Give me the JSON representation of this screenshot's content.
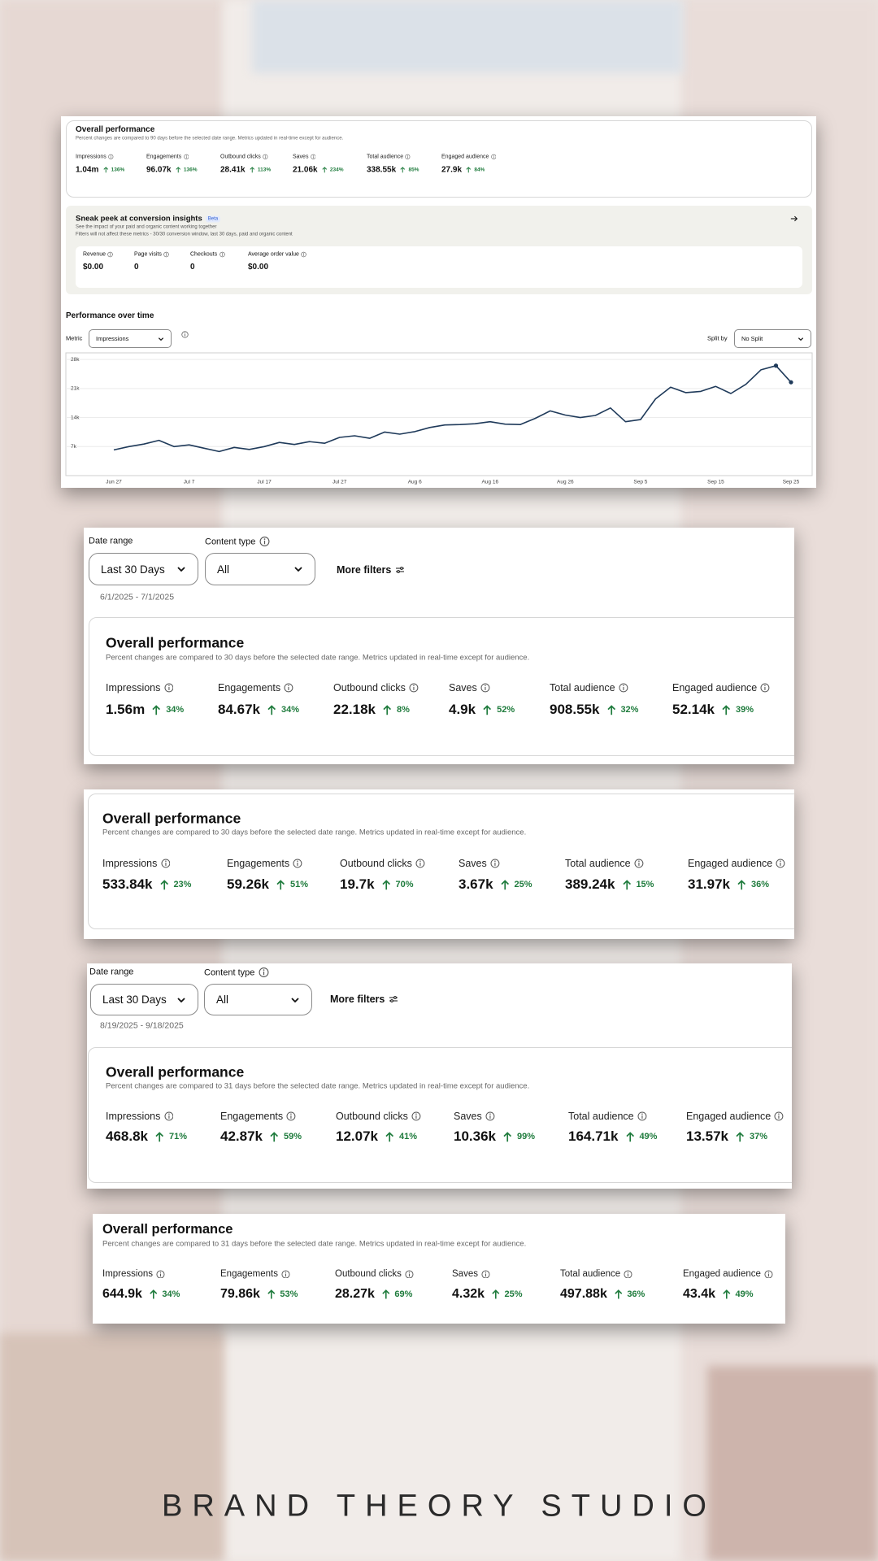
{
  "panels": [
    {
      "overall": {
        "title": "Overall performance",
        "subtitle": "Percent changes are compared to 90 days before the selected date range. Metrics updated in real-time except for audience.",
        "metrics": [
          {
            "label": "Impressions",
            "value": "1.04m",
            "change": "136%"
          },
          {
            "label": "Engagements",
            "value": "96.07k",
            "change": "136%"
          },
          {
            "label": "Outbound clicks",
            "value": "28.41k",
            "change": "113%"
          },
          {
            "label": "Saves",
            "value": "21.06k",
            "change": "234%"
          },
          {
            "label": "Total audience",
            "value": "338.55k",
            "change": "85%"
          },
          {
            "label": "Engaged audience",
            "value": "27.9k",
            "change": "84%"
          }
        ]
      },
      "conversion": {
        "title": "Sneak peek at conversion insights",
        "badge": "Beta",
        "description": "See the impact of your paid and organic content working together",
        "note": "Filters will not affect these metrics - 30/30 conversion window, last 30 days, paid and organic content",
        "metrics": [
          {
            "label": "Revenue",
            "value": "$0.00"
          },
          {
            "label": "Page visits",
            "value": "0"
          },
          {
            "label": "Checkouts",
            "value": "0"
          },
          {
            "label": "Average order value",
            "value": "$0.00"
          }
        ]
      },
      "performance": {
        "title": "Performance over time",
        "metric_label": "Metric",
        "metric_value": "Impressions",
        "split_label": "Split by",
        "split_value": "No Split"
      }
    },
    {
      "filters": {
        "date_range_label": "Date range",
        "date_range": "Last 30 Days",
        "content_type_label": "Content type",
        "content_type": "All",
        "more_filters": "More filters",
        "dates": "6/1/2025 - 7/1/2025"
      },
      "overall": {
        "title": "Overall performance",
        "subtitle": "Percent changes are compared to 30 days before the selected date range. Metrics updated in real-time except for audience.",
        "metrics": [
          {
            "label": "Impressions",
            "value": "1.56m",
            "change": "34%"
          },
          {
            "label": "Engagements",
            "value": "84.67k",
            "change": "34%"
          },
          {
            "label": "Outbound clicks",
            "value": "22.18k",
            "change": "8%"
          },
          {
            "label": "Saves",
            "value": "4.9k",
            "change": "52%"
          },
          {
            "label": "Total audience",
            "value": "908.55k",
            "change": "32%"
          },
          {
            "label": "Engaged audience",
            "value": "52.14k",
            "change": "39%"
          }
        ]
      }
    },
    {
      "overall": {
        "title": "Overall performance",
        "subtitle": "Percent changes are compared to 30 days before the selected date range. Metrics updated in real-time except for audience.",
        "metrics": [
          {
            "label": "Impressions",
            "value": "533.84k",
            "change": "23%"
          },
          {
            "label": "Engagements",
            "value": "59.26k",
            "change": "51%"
          },
          {
            "label": "Outbound clicks",
            "value": "19.7k",
            "change": "70%"
          },
          {
            "label": "Saves",
            "value": "3.67k",
            "change": "25%"
          },
          {
            "label": "Total audience",
            "value": "389.24k",
            "change": "15%"
          },
          {
            "label": "Engaged audience",
            "value": "31.97k",
            "change": "36%"
          }
        ]
      }
    },
    {
      "filters": {
        "date_range_label": "Date range",
        "date_range": "Last 30 Days",
        "content_type_label": "Content type",
        "content_type": "All",
        "more_filters": "More filters",
        "dates": "8/19/2025 - 9/18/2025"
      },
      "overall": {
        "title": "Overall performance",
        "subtitle": "Percent changes are compared to 31 days before the selected date range. Metrics updated in real-time except for audience.",
        "metrics": [
          {
            "label": "Impressions",
            "value": "468.8k",
            "change": "71%"
          },
          {
            "label": "Engagements",
            "value": "42.87k",
            "change": "59%"
          },
          {
            "label": "Outbound clicks",
            "value": "12.07k",
            "change": "41%"
          },
          {
            "label": "Saves",
            "value": "10.36k",
            "change": "99%"
          },
          {
            "label": "Total audience",
            "value": "164.71k",
            "change": "49%"
          },
          {
            "label": "Engaged audience",
            "value": "13.57k",
            "change": "37%"
          }
        ]
      }
    },
    {
      "overall": {
        "title": "Overall performance",
        "subtitle": "Percent changes are compared to 31 days before the selected date range. Metrics updated in real-time except for audience.",
        "metrics": [
          {
            "label": "Impressions",
            "value": "644.9k",
            "change": "34%"
          },
          {
            "label": "Engagements",
            "value": "79.86k",
            "change": "53%"
          },
          {
            "label": "Outbound clicks",
            "value": "28.27k",
            "change": "69%"
          },
          {
            "label": "Saves",
            "value": "4.32k",
            "change": "25%"
          },
          {
            "label": "Total audience",
            "value": "497.88k",
            "change": "36%"
          },
          {
            "label": "Engaged audience",
            "value": "43.4k",
            "change": "49%"
          }
        ]
      }
    }
  ],
  "chart_data": {
    "type": "line",
    "color": "#1f3a5a",
    "grid": true,
    "categories": [
      "Jun 27",
      null,
      null,
      null,
      null,
      "Jul 7",
      null,
      null,
      null,
      null,
      "Jul 17",
      null,
      null,
      null,
      null,
      "Jul 27",
      null,
      null,
      null,
      null,
      "Aug 6",
      null,
      null,
      null,
      null,
      "Aug 16",
      null,
      null,
      null,
      null,
      "Aug 26",
      null,
      null,
      null,
      null,
      "Sep 5",
      null,
      null,
      null,
      null,
      "Sep 15",
      null,
      null,
      null,
      null,
      "Sep 25"
    ],
    "values": [
      6200,
      7000,
      7600,
      8500,
      7000,
      7400,
      6600,
      5800,
      6800,
      6300,
      7000,
      8000,
      7500,
      8200,
      7800,
      9200,
      9600,
      9000,
      10500,
      10000,
      10600,
      11600,
      12200,
      12300,
      12500,
      13000,
      12400,
      12300,
      13800,
      15600,
      14600,
      14000,
      14500,
      16300,
      13000,
      13500,
      18500,
      21300,
      20000,
      20300,
      21500,
      19800,
      22000,
      25500,
      26500,
      22500
    ],
    "ylim": [
      0,
      29000
    ],
    "yticks": [
      {
        "value": 7000,
        "label": "7k"
      },
      {
        "value": 14000,
        "label": "14k"
      },
      {
        "value": 21000,
        "label": "21k"
      },
      {
        "value": 28000,
        "label": "28k"
      }
    ]
  },
  "footer": "BRAND THEORY STUDIO"
}
